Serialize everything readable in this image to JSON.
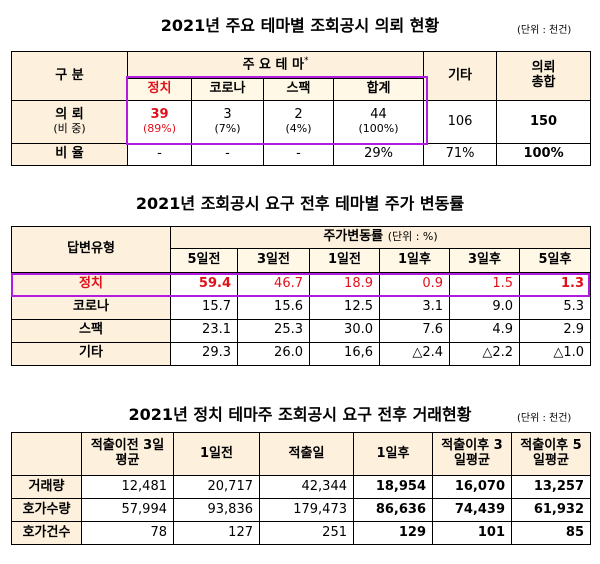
{
  "t1": {
    "title": "2021년 주요 테마별 조회공시 의뢰 현황",
    "unit": "(단위 : 천건)",
    "h_gubun": "구 분",
    "h_theme": "주 요 테 마",
    "h_theme_mark": "*",
    "h_etc": "기타",
    "h_total": "의뢰 총합",
    "sub": [
      "정치",
      "코로나",
      "스팩",
      "합계"
    ],
    "row1_label": "의 뢰",
    "row1_sub": "(비 중)",
    "row1_vals": [
      "39",
      "3",
      "2",
      "44"
    ],
    "row1_pcts": [
      "(89%)",
      "(7%)",
      "(4%)",
      "(100%)"
    ],
    "row1_etc": "106",
    "row1_total": "150",
    "row2_label": "비 율",
    "row2_vals": [
      "-",
      "-",
      "-",
      "29%"
    ],
    "row2_etc": "71%",
    "row2_total": "100%"
  },
  "t2": {
    "title": "2021년 조회공시 요구 전후 테마별 주가 변동률",
    "h_type": "답변유형",
    "h_change": "주가변동률",
    "h_change_unit": "(단위 : %)",
    "cols": [
      "5일전",
      "3일전",
      "1일전",
      "1일후",
      "3일후",
      "5일후"
    ],
    "rows": [
      {
        "label": "정치",
        "vals": [
          "59.4",
          "46.7",
          "18.9",
          "0.9",
          "1.5",
          "1.3"
        ]
      },
      {
        "label": "코로나",
        "vals": [
          "15.7",
          "15.6",
          "12.5",
          "3.1",
          "9.0",
          "5.3"
        ]
      },
      {
        "label": "스팩",
        "vals": [
          "23.1",
          "25.3",
          "30.0",
          "7.6",
          "4.9",
          "2.9"
        ]
      },
      {
        "label": "기타",
        "vals": [
          "29.3",
          "26.0",
          "16,6",
          "△2.4",
          "△2.2",
          "△1.0"
        ]
      }
    ]
  },
  "t3": {
    "title": "2021년 정치 테마주 조회공시 요구 전후 거래현황",
    "unit": "(단위 : 천건)",
    "cols": [
      "적출이전 3일평균",
      "1일전",
      "적출일",
      "1일후",
      "적출이후 3일평균",
      "적출이후 5일평균"
    ],
    "rows": [
      {
        "label": "거래량",
        "vals": [
          "12,481",
          "20,717",
          "42,344",
          "18,954",
          "16,070",
          "13,257"
        ]
      },
      {
        "label": "호가수량",
        "vals": [
          "57,994",
          "93,836",
          "179,473",
          "86,636",
          "74,439",
          "61,932"
        ]
      },
      {
        "label": "호가건수",
        "vals": [
          "78",
          "127",
          "251",
          "129",
          "101",
          "85"
        ]
      }
    ]
  },
  "colors": {
    "header_bg": "#fdf0dd",
    "highlight_border": "#b21ce0",
    "red_text": "#e0101a"
  }
}
